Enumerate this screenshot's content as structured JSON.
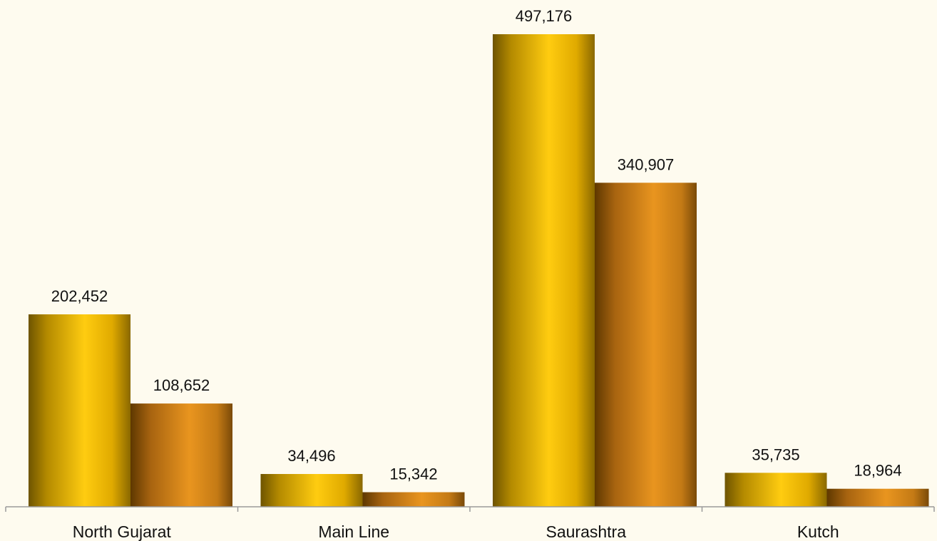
{
  "chart_data": {
    "type": "bar",
    "categories": [
      "North Gujarat",
      "Main Line",
      "Saurashtra",
      "Kutch"
    ],
    "series": [
      {
        "values": [
          202452,
          34496,
          497176,
          35735
        ],
        "labels": [
          "202,452",
          "34,496",
          "497,176",
          "35,735"
        ],
        "color": "#f7c200"
      },
      {
        "values": [
          108652,
          15342,
          340907,
          18964
        ],
        "labels": [
          "108,652",
          "15,342",
          "340,907",
          "18,964"
        ],
        "color": "#e0901e"
      }
    ],
    "title": "",
    "xlabel": "",
    "ylabel": "",
    "ylim": [
      0,
      500000
    ],
    "grid": false,
    "legend": "none",
    "background": "#fefbef"
  }
}
